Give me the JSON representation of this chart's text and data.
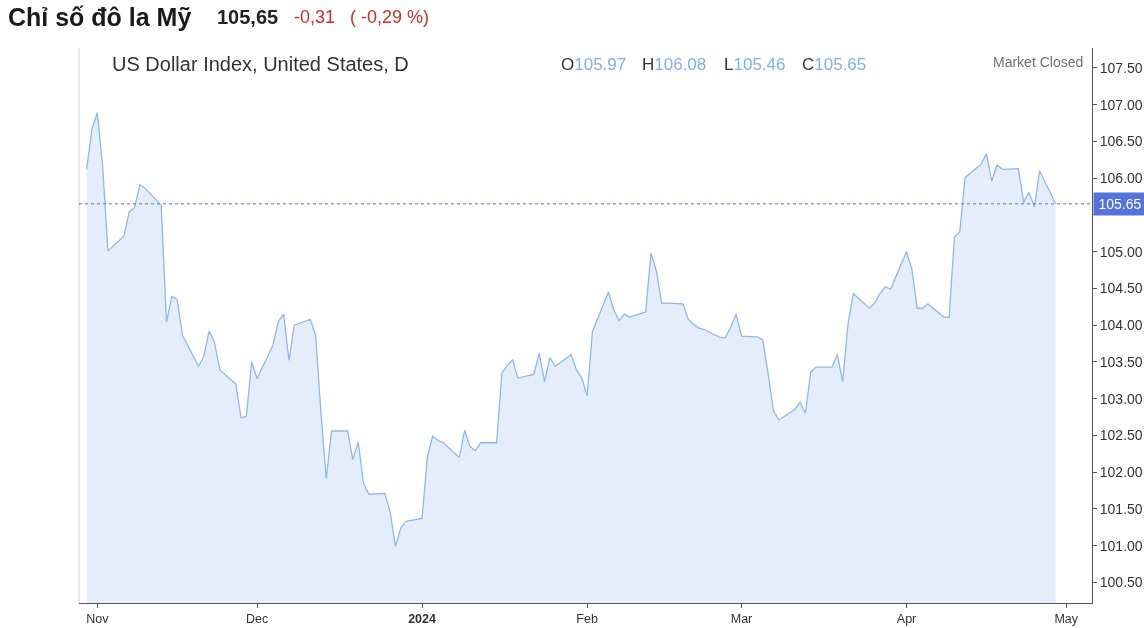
{
  "chart_data": {
    "type": "area",
    "title": "Chỉ số đô la Mỹ",
    "subtitle": "US Dollar Index, United States, D",
    "annotations": [
      "105,65",
      "-0,31",
      "( -0,29 %)",
      "O105.97",
      "H106.08",
      "L105.46",
      "C105.65",
      "Market Closed"
    ],
    "x": [
      "2023-10-30",
      "2023-10-31",
      "2023-11-01",
      "2023-11-02",
      "2023-11-03",
      "2023-11-06",
      "2023-11-07",
      "2023-11-08",
      "2023-11-09",
      "2023-11-10",
      "2023-11-13",
      "2023-11-14",
      "2023-11-15",
      "2023-11-16",
      "2023-11-17",
      "2023-11-20",
      "2023-11-21",
      "2023-11-22",
      "2023-11-23",
      "2023-11-24",
      "2023-11-27",
      "2023-11-28",
      "2023-11-29",
      "2023-11-30",
      "2023-12-01",
      "2023-12-04",
      "2023-12-05",
      "2023-12-06",
      "2023-12-07",
      "2023-12-08",
      "2023-12-11",
      "2023-12-12",
      "2023-12-13",
      "2023-12-14",
      "2023-12-15",
      "2023-12-18",
      "2023-12-19",
      "2023-12-20",
      "2023-12-21",
      "2023-12-22",
      "2023-12-25",
      "2023-12-26",
      "2023-12-27",
      "2023-12-28",
      "2023-12-29",
      "2024-01-01",
      "2024-01-02",
      "2024-01-03",
      "2024-01-04",
      "2024-01-05",
      "2024-01-08",
      "2024-01-09",
      "2024-01-10",
      "2024-01-11",
      "2024-01-12",
      "2024-01-15",
      "2024-01-16",
      "2024-01-17",
      "2024-01-18",
      "2024-01-19",
      "2024-01-22",
      "2024-01-23",
      "2024-01-24",
      "2024-01-25",
      "2024-01-26",
      "2024-01-29",
      "2024-01-30",
      "2024-01-31",
      "2024-02-01",
      "2024-02-02",
      "2024-02-05",
      "2024-02-06",
      "2024-02-07",
      "2024-02-08",
      "2024-02-09",
      "2024-02-12",
      "2024-02-13",
      "2024-02-14",
      "2024-02-15",
      "2024-02-16",
      "2024-02-19",
      "2024-02-20",
      "2024-02-21",
      "2024-02-22",
      "2024-02-23",
      "2024-02-26",
      "2024-02-27",
      "2024-02-28",
      "2024-02-29",
      "2024-03-01",
      "2024-03-04",
      "2024-03-05",
      "2024-03-06",
      "2024-03-07",
      "2024-03-08",
      "2024-03-11",
      "2024-03-12",
      "2024-03-13",
      "2024-03-14",
      "2024-03-15",
      "2024-03-18",
      "2024-03-19",
      "2024-03-20",
      "2024-03-21",
      "2024-03-22",
      "2024-03-25",
      "2024-03-26",
      "2024-03-27",
      "2024-03-28",
      "2024-03-29",
      "2024-04-01",
      "2024-04-02",
      "2024-04-03",
      "2024-04-04",
      "2024-04-05",
      "2024-04-08",
      "2024-04-09",
      "2024-04-10",
      "2024-04-11",
      "2024-04-12",
      "2024-04-15",
      "2024-04-16",
      "2024-04-17",
      "2024-04-18",
      "2024-04-19",
      "2024-04-22",
      "2024-04-23",
      "2024-04-24",
      "2024-04-25",
      "2024-04-26",
      "2024-04-29"
    ],
    "series": [
      {
        "color": "#8fb9ea",
        "values": [
          106.12,
          106.67,
          106.89,
          106.16,
          105.01,
          105.21,
          105.54,
          105.6,
          105.91,
          105.86,
          105.63,
          104.04,
          104.39,
          104.35,
          103.86,
          103.44,
          103.57,
          103.92,
          103.77,
          103.39,
          103.2,
          102.74,
          102.76,
          103.5,
          103.27,
          103.73,
          104.05,
          104.15,
          103.52,
          104.0,
          104.08,
          103.87,
          102.82,
          101.91,
          102.56,
          102.56,
          102.17,
          102.41,
          101.85,
          101.7,
          101.71,
          101.46,
          100.99,
          101.24,
          101.33,
          101.37,
          102.21,
          102.49,
          102.43,
          102.4,
          102.2,
          102.57,
          102.35,
          102.29,
          102.4,
          102.4,
          103.35,
          103.45,
          103.53,
          103.28,
          103.33,
          103.62,
          103.23,
          103.56,
          103.44,
          103.6,
          103.39,
          103.28,
          103.04,
          103.91,
          104.45,
          104.21,
          104.06,
          104.15,
          104.11,
          104.18,
          104.98,
          104.74,
          104.3,
          104.3,
          104.29,
          104.08,
          104.01,
          103.96,
          103.94,
          103.83,
          103.83,
          103.98,
          104.15,
          103.85,
          103.84,
          103.8,
          103.34,
          102.83,
          102.71,
          102.85,
          102.95,
          102.8,
          103.36,
          103.43,
          103.43,
          103.6,
          103.23,
          104.01,
          104.43,
          104.23,
          104.3,
          104.43,
          104.52,
          104.49,
          105.0,
          104.76,
          104.23,
          104.23,
          104.29,
          104.11,
          104.11,
          105.2,
          105.27,
          106.01,
          106.19,
          106.33,
          105.96,
          106.18,
          106.12,
          106.13,
          105.67,
          105.81,
          105.61,
          106.1,
          105.65
        ]
      }
    ],
    "xlim": [
      "2023-10-28T13:30",
      "2024-05-05T20:00"
    ],
    "xticks": [
      {
        "value": "2023-11-01",
        "label": "Nov"
      },
      {
        "value": "2023-12-01",
        "label": "Dec"
      },
      {
        "value": "2024-01-01",
        "label": "2024"
      },
      {
        "value": "2024-02-01",
        "label": "Feb"
      },
      {
        "value": "2024-03-01",
        "label": "Mar"
      },
      {
        "value": "2024-04-01",
        "label": "Apr"
      },
      {
        "value": "2024-05-01",
        "label": "May"
      }
    ],
    "ylim": [
      100.22,
      107.77
    ],
    "yticks": [
      {
        "value": 100.5,
        "label": "100.50"
      },
      {
        "value": 101.0,
        "label": "101.00"
      },
      {
        "value": 101.5,
        "label": "101.50"
      },
      {
        "value": 102.0,
        "label": "102.00"
      },
      {
        "value": 102.5,
        "label": "102.50"
      },
      {
        "value": 103.0,
        "label": "103.00"
      },
      {
        "value": 103.5,
        "label": "103.50"
      },
      {
        "value": 104.0,
        "label": "104.00"
      },
      {
        "value": 104.5,
        "label": "104.50"
      },
      {
        "value": 105.0,
        "label": "105.00"
      },
      {
        "value": 105.5,
        "label": null
      },
      {
        "value": 106.0,
        "label": "106.00"
      },
      {
        "value": 106.5,
        "label": "106.50"
      },
      {
        "value": 107.0,
        "label": "107.00"
      },
      {
        "value": 107.5,
        "label": "107.50"
      }
    ],
    "ref_lines": [
      {
        "axis": "y",
        "value": 105.65,
        "label": "105.65",
        "color": "#5573de",
        "line_style": "dotted"
      }
    ]
  }
}
